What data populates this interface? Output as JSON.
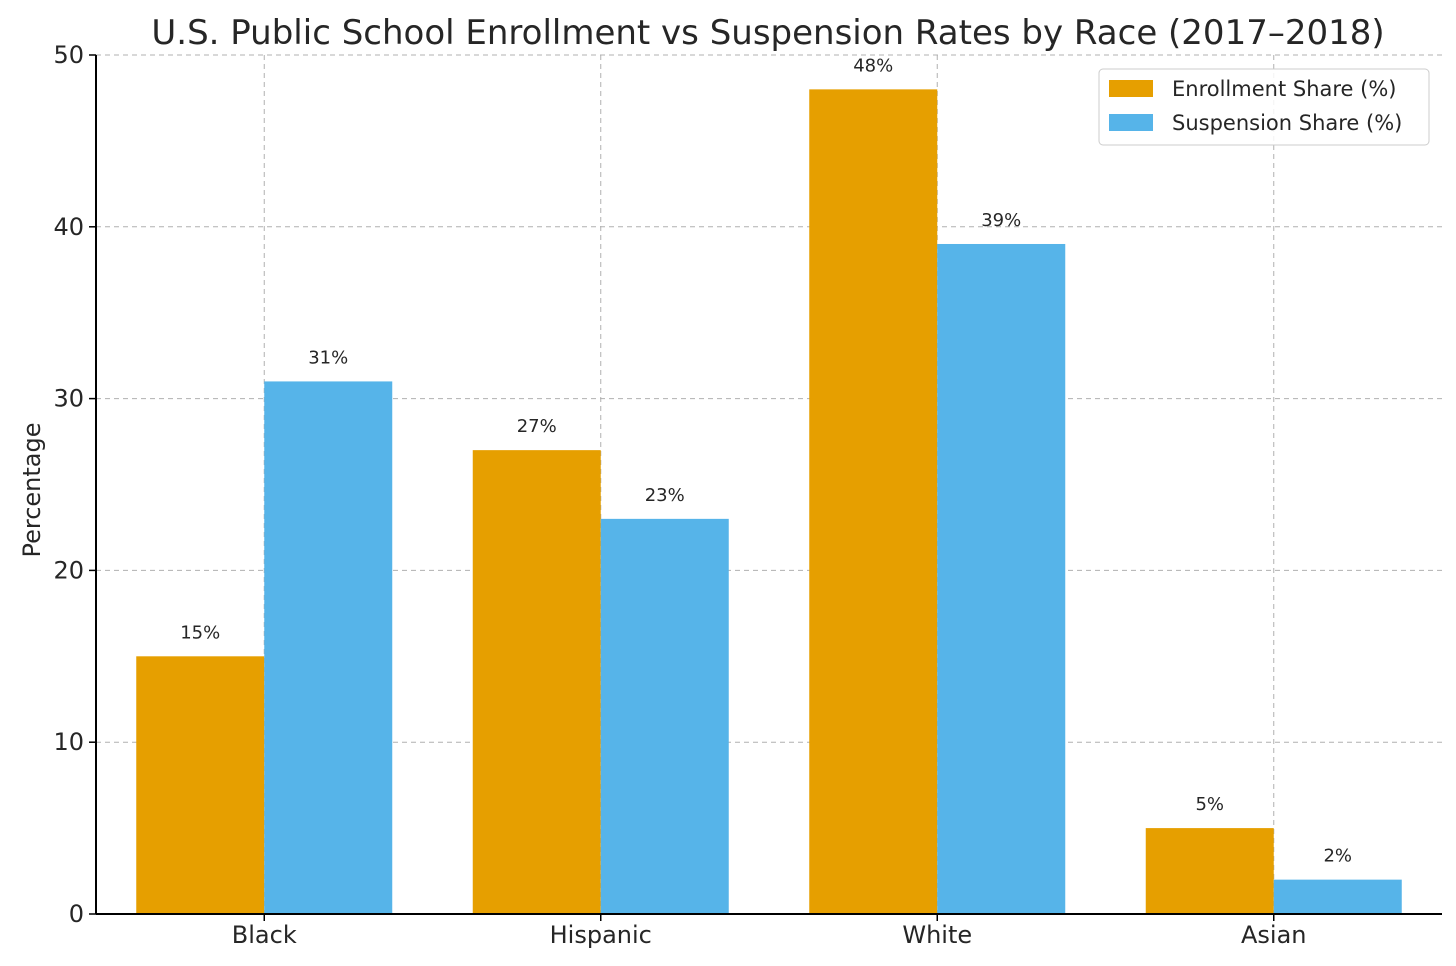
{
  "chart_data": {
    "type": "bar",
    "title": "U.S. Public School Enrollment vs Suspension Rates by Race (2017–2018)",
    "xlabel": "",
    "ylabel": "Percentage",
    "ylim": [
      0,
      50
    ],
    "yticks": [
      0,
      10,
      20,
      30,
      40,
      50
    ],
    "grid": true,
    "legend_position": "top-right",
    "categories": [
      "Black",
      "Hispanic",
      "White",
      "Asian"
    ],
    "series": [
      {
        "name": "Enrollment Share (%)",
        "color": "#E69F00",
        "values": [
          15,
          27,
          48,
          5
        ],
        "labels": [
          "15%",
          "27%",
          "48%",
          "5%"
        ]
      },
      {
        "name": "Suspension Share (%)",
        "color": "#56B4E9",
        "values": [
          31,
          23,
          39,
          2
        ],
        "labels": [
          "31%",
          "23%",
          "39%",
          "2%"
        ]
      }
    ]
  }
}
